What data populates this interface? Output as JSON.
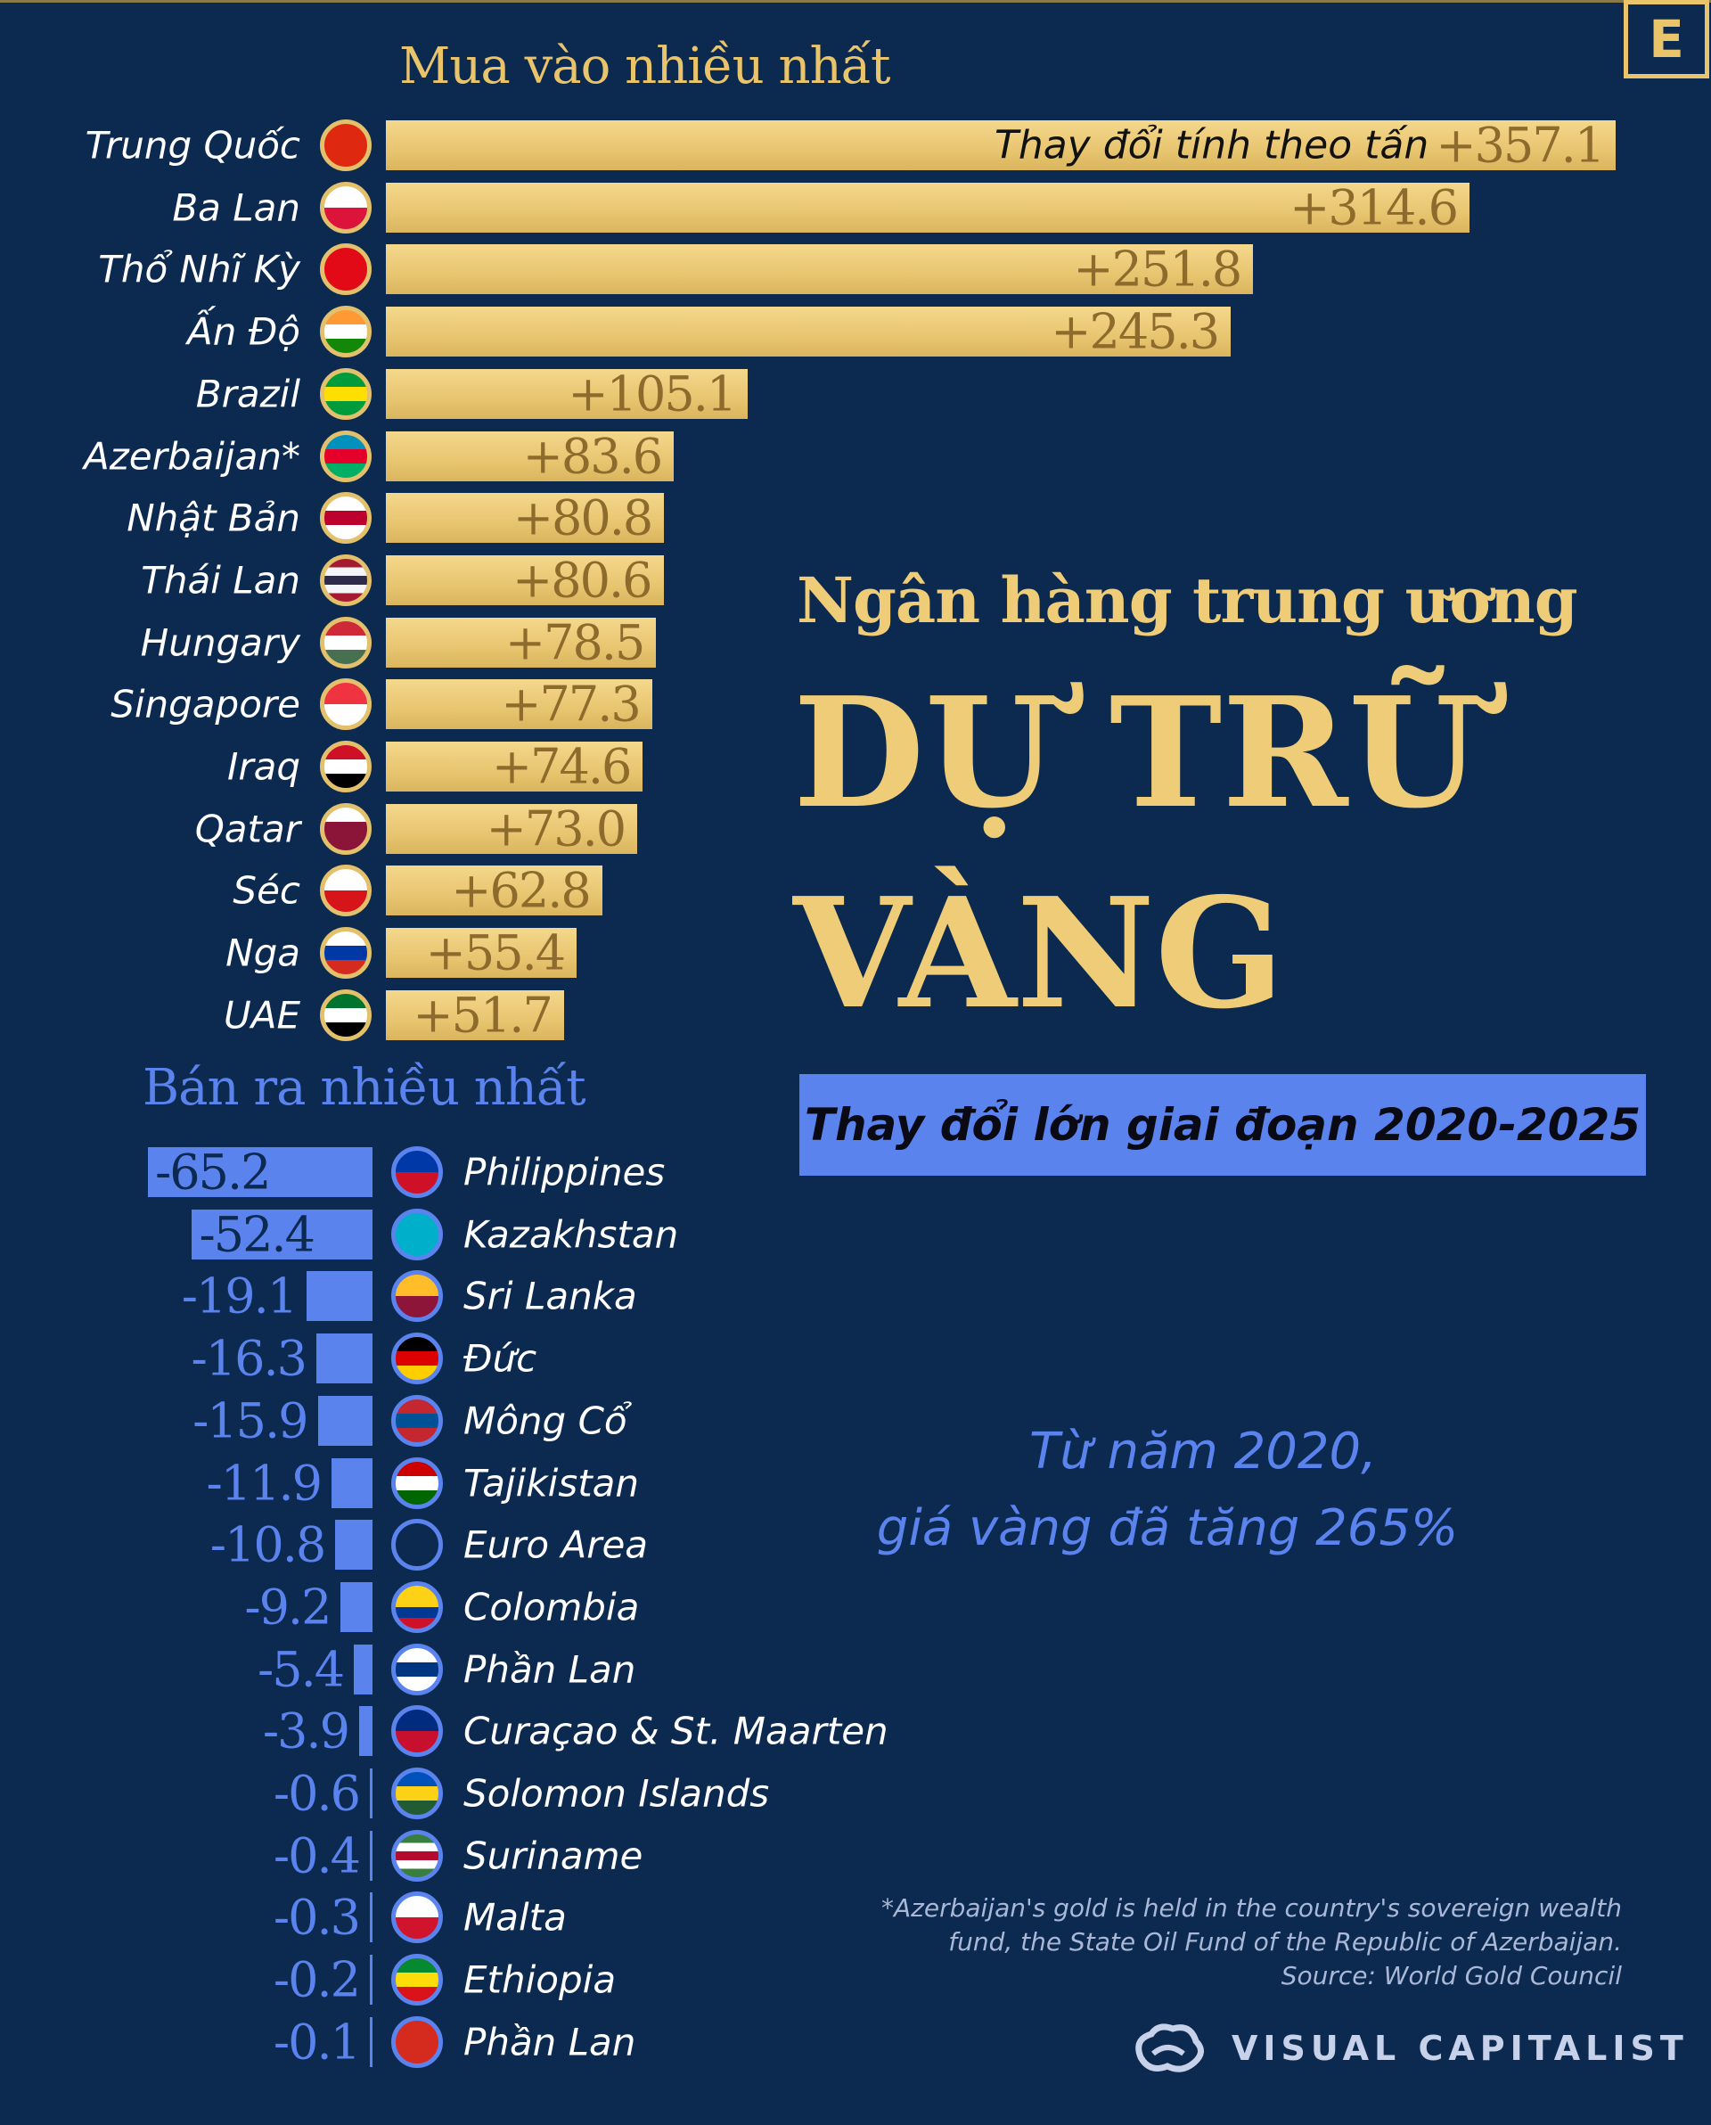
{
  "brand": {
    "badge": "E",
    "logo_text": "VISUAL CAPITALIST"
  },
  "title": {
    "line1": "Ngân hàng trung ương",
    "line2": "DỰ TRỮ",
    "line3": "VÀNG",
    "subtitle": "Thay đổi lớn giai đoạn 2020-2025"
  },
  "note": {
    "line1": "Từ năm 2020,",
    "line2": "giá vàng đã tăng 265%"
  },
  "footnote": {
    "line1": "*Azerbaijan's gold is held in the country's sovereign wealth",
    "line2": "fund, the State Oil Fund of the Republic of Azerbaijan.",
    "line3": "Source: World Gold Council"
  },
  "colors": {
    "gold": "#efcd78",
    "blue": "#5b83ee",
    "background": "#0c2950"
  },
  "chart_data": [
    {
      "type": "bar",
      "orientation": "horizontal",
      "title": "Mua vào nhiều nhất",
      "unit_label": "Thay đổi tính theo tấn",
      "categories": [
        "Trung Quốc",
        "Ba Lan",
        "Thổ Nhĩ Kỳ",
        "Ấn Độ",
        "Brazil",
        "Azerbaijan*",
        "Nhật Bản",
        "Thái Lan",
        "Hungary",
        "Singapore",
        "Iraq",
        "Qatar",
        "Séc",
        "Nga",
        "UAE"
      ],
      "values": [
        357.1,
        314.6,
        251.8,
        245.3,
        105.1,
        83.6,
        80.8,
        80.6,
        78.5,
        77.3,
        74.6,
        73.0,
        62.8,
        55.4,
        51.7
      ],
      "labels": [
        "+357.1",
        "+314.6",
        "+251.8",
        "+245.3",
        "+105.1",
        "+83.6",
        "+80.8",
        "+80.6",
        "+78.5",
        "+77.3",
        "+74.6",
        "+73.0",
        "+62.8",
        "+55.4",
        "+51.7"
      ],
      "flags": [
        [
          "#de2910",
          "#de2910"
        ],
        [
          "#ffffff",
          "#dc143c"
        ],
        [
          "#e30a17",
          "#e30a17"
        ],
        [
          "#ff9933",
          "#ffffff",
          "#138808"
        ],
        [
          "#009c3b",
          "#ffdf00",
          "#009c3b"
        ],
        [
          "#0092bc",
          "#e4002b",
          "#00af66"
        ],
        [
          "#ffffff",
          "#bc002d",
          "#ffffff"
        ],
        [
          "#a51931",
          "#f4f5f8",
          "#2d2a4a",
          "#f4f5f8",
          "#a51931"
        ],
        [
          "#ce2939",
          "#ffffff",
          "#477050"
        ],
        [
          "#ef3340",
          "#ffffff"
        ],
        [
          "#ce1126",
          "#ffffff",
          "#000000"
        ],
        [
          "#ffffff",
          "#8a1538",
          "#8a1538"
        ],
        [
          "#ffffff",
          "#d7141a"
        ],
        [
          "#ffffff",
          "#0039a6",
          "#d52b1e"
        ],
        [
          "#00732f",
          "#ffffff",
          "#000000"
        ]
      ]
    },
    {
      "type": "bar",
      "orientation": "horizontal",
      "title": "Bán ra nhiều nhất",
      "categories": [
        "Philippines",
        "Kazakhstan",
        "Sri Lanka",
        "Đức",
        "Mông Cổ",
        "Tajikistan",
        "Euro Area",
        "Colombia",
        "Phần Lan",
        "Curaçao & St. Maarten",
        "Solomon Islands",
        "Suriname",
        "Malta",
        "Ethiopia",
        "Phần Lan"
      ],
      "values": [
        -65.2,
        -52.4,
        -19.1,
        -16.3,
        -15.9,
        -11.9,
        -10.8,
        -9.2,
        -5.4,
        -3.9,
        -0.6,
        -0.4,
        -0.3,
        -0.2,
        -0.1
      ],
      "labels": [
        "-65.2",
        "-52.4",
        "-19.1",
        "-16.3",
        "-15.9",
        "-11.9",
        "-10.8",
        "-9.2",
        "-5.4",
        "-3.9",
        "-0.6",
        "-0.4",
        "-0.3",
        "-0.2",
        "-0.1"
      ],
      "flags": [
        [
          "#0038a8",
          "#ce1126"
        ],
        [
          "#00afca",
          "#00afca"
        ],
        [
          "#ffbe29",
          "#8d153a"
        ],
        [
          "#000000",
          "#dd0000",
          "#ffce00"
        ],
        [
          "#c4272f",
          "#015197",
          "#c4272f"
        ],
        [
          "#cc0000",
          "#ffffff",
          "#006600"
        ],
        [
          "#0c2950",
          "#0c2950"
        ],
        [
          "#fcd116",
          "#fcd116",
          "#003893",
          "#ce1126"
        ],
        [
          "#ffffff",
          "#003580",
          "#ffffff"
        ],
        [
          "#002b7f",
          "#c8102e"
        ],
        [
          "#0051ba",
          "#fcd116",
          "#215b33"
        ],
        [
          "#377e3f",
          "#ffffff",
          "#b40a2d",
          "#ffffff",
          "#377e3f"
        ],
        [
          "#ffffff",
          "#cf142b"
        ],
        [
          "#078930",
          "#fcdd09",
          "#da121a"
        ],
        [
          "#d52b1e",
          "#d52b1e"
        ]
      ]
    }
  ]
}
